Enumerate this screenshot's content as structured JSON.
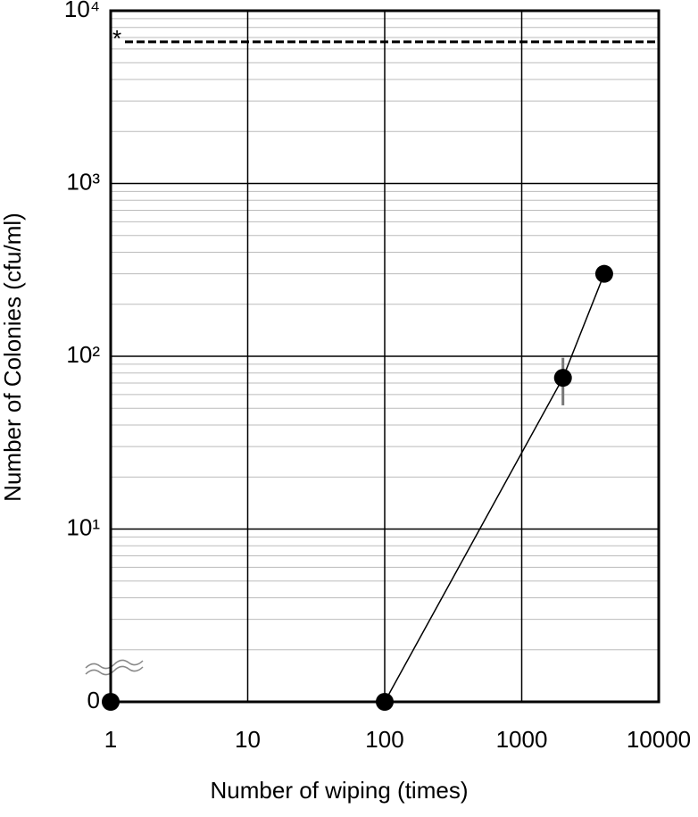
{
  "chart_data": {
    "type": "line",
    "xlabel": "Number of wiping (times)",
    "ylabel": "Number of Colonies (cfu/ml)",
    "x": [
      1,
      100,
      2000,
      4000
    ],
    "series": [
      {
        "color": "#000000",
        "values": [
          0,
          0,
          75,
          300
        ],
        "error": [
          null,
          null,
          23,
          null
        ]
      }
    ],
    "xlim": [
      1,
      10000
    ],
    "xticks": [
      1,
      10,
      100,
      1000,
      10000
    ],
    "ylim": [
      0,
      10000
    ],
    "yticks": [
      {
        "value": 0,
        "label": "0"
      },
      {
        "value": 10,
        "label": "10¹"
      },
      {
        "value": 100,
        "label": "10²"
      },
      {
        "value": 1000,
        "label": "10³"
      },
      {
        "value": 10000,
        "label": "10⁴"
      }
    ],
    "xscale": "log",
    "yscale": "log",
    "grid": true,
    "minor_grid": true,
    "reference_line": {
      "value": 6600,
      "label": "*"
    }
  }
}
